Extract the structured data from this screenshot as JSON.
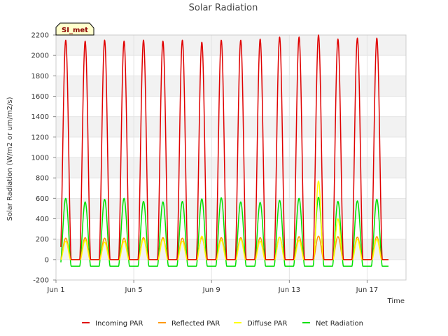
{
  "chart_data": {
    "type": "line",
    "title": "Solar Radiation",
    "xlabel": "Time",
    "ylabel": "Solar Radiation (W/m2 or um/m2/s)",
    "site_label": "SI_met",
    "ylim": [
      -200,
      2200
    ],
    "yticks": [
      -200,
      0,
      200,
      400,
      600,
      800,
      1000,
      1200,
      1400,
      1600,
      1800,
      2000,
      2200
    ],
    "xlim_days": [
      1,
      19
    ],
    "xticks": [
      {
        "day": 1,
        "label": "Jun 1"
      },
      {
        "day": 5,
        "label": "Jun 5"
      },
      {
        "day": 9,
        "label": "Jun 9"
      },
      {
        "day": 13,
        "label": "Jun 13"
      },
      {
        "day": 17,
        "label": "Jun 17"
      }
    ],
    "data_start_day": 1.25,
    "data_end_day": 18.1,
    "day_count": 17,
    "grid": true,
    "legend_position": "bottom",
    "series": [
      {
        "name": "Incoming PAR",
        "color": "#e00000",
        "daily_peaks": [
          2150,
          2140,
          2150,
          2140,
          2150,
          2140,
          2150,
          2130,
          2150,
          2150,
          2160,
          2180,
          2180,
          2200,
          2160,
          2170,
          2170
        ],
        "night_value": 0
      },
      {
        "name": "Reflected PAR",
        "color": "#ff9900",
        "daily_peaks": [
          210,
          215,
          210,
          210,
          215,
          215,
          210,
          215,
          215,
          215,
          215,
          220,
          225,
          230,
          225,
          220,
          225
        ],
        "night_value": 0
      },
      {
        "name": "Diffuse PAR",
        "color": "#ffff00",
        "daily_peaks": [
          180,
          190,
          170,
          180,
          200,
          200,
          180,
          230,
          190,
          200,
          180,
          220,
          190,
          770,
          400,
          200,
          200
        ],
        "night_value": 0
      },
      {
        "name": "Net Radiation",
        "color": "#00e000",
        "daily_peaks": [
          600,
          565,
          590,
          600,
          570,
          565,
          570,
          595,
          605,
          565,
          560,
          580,
          600,
          610,
          570,
          575,
          590
        ],
        "night_value": -65
      }
    ]
  }
}
